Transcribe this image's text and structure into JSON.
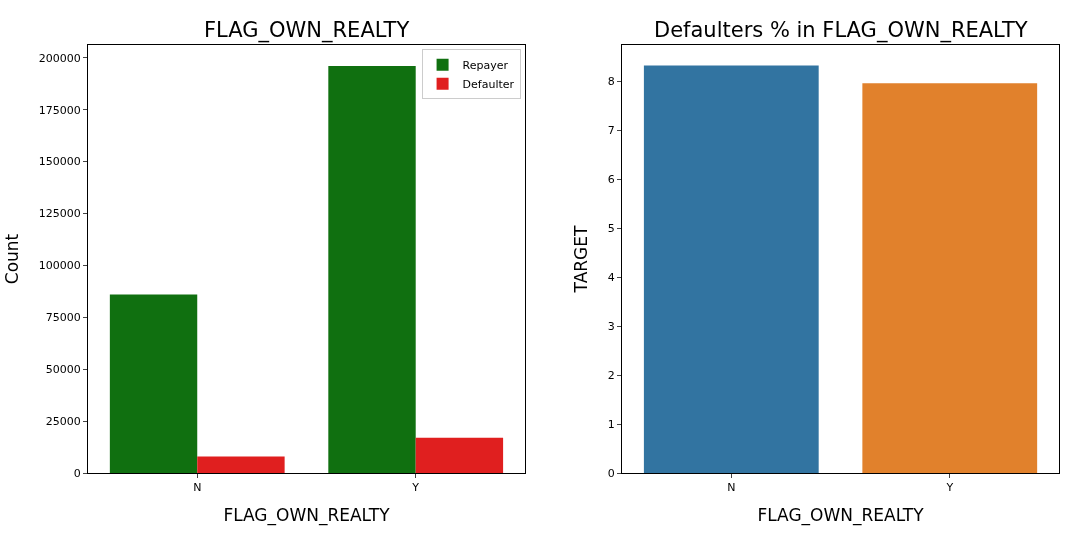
{
  "chart_data": [
    {
      "type": "bar",
      "title": "FLAG_OWN_REALTY",
      "xlabel": "FLAG_OWN_REALTY",
      "ylabel": "Count",
      "categories": [
        "N",
        "Y"
      ],
      "series": [
        {
          "name": "Repayer",
          "color": "#107010",
          "values": [
            86000,
            196000
          ]
        },
        {
          "name": "Defaulter",
          "color": "#e01f1f",
          "values": [
            8000,
            17000
          ]
        }
      ],
      "ylim": [
        0,
        206145
      ],
      "yticks": [
        0,
        25000,
        50000,
        75000,
        100000,
        125000,
        150000,
        175000,
        200000
      ],
      "legend": "top right"
    },
    {
      "type": "bar",
      "title": "Defaulters % in FLAG_OWN_REALTY",
      "xlabel": "FLAG_OWN_REALTY",
      "ylabel": "TARGET",
      "categories": [
        "N",
        "Y"
      ],
      "values": [
        8.32,
        7.96
      ],
      "colors": [
        "#3274a1",
        "#e1812c"
      ],
      "ylim": [
        0,
        8.74
      ],
      "yticks": [
        0,
        1,
        2,
        3,
        4,
        5,
        6,
        7,
        8
      ]
    }
  ]
}
